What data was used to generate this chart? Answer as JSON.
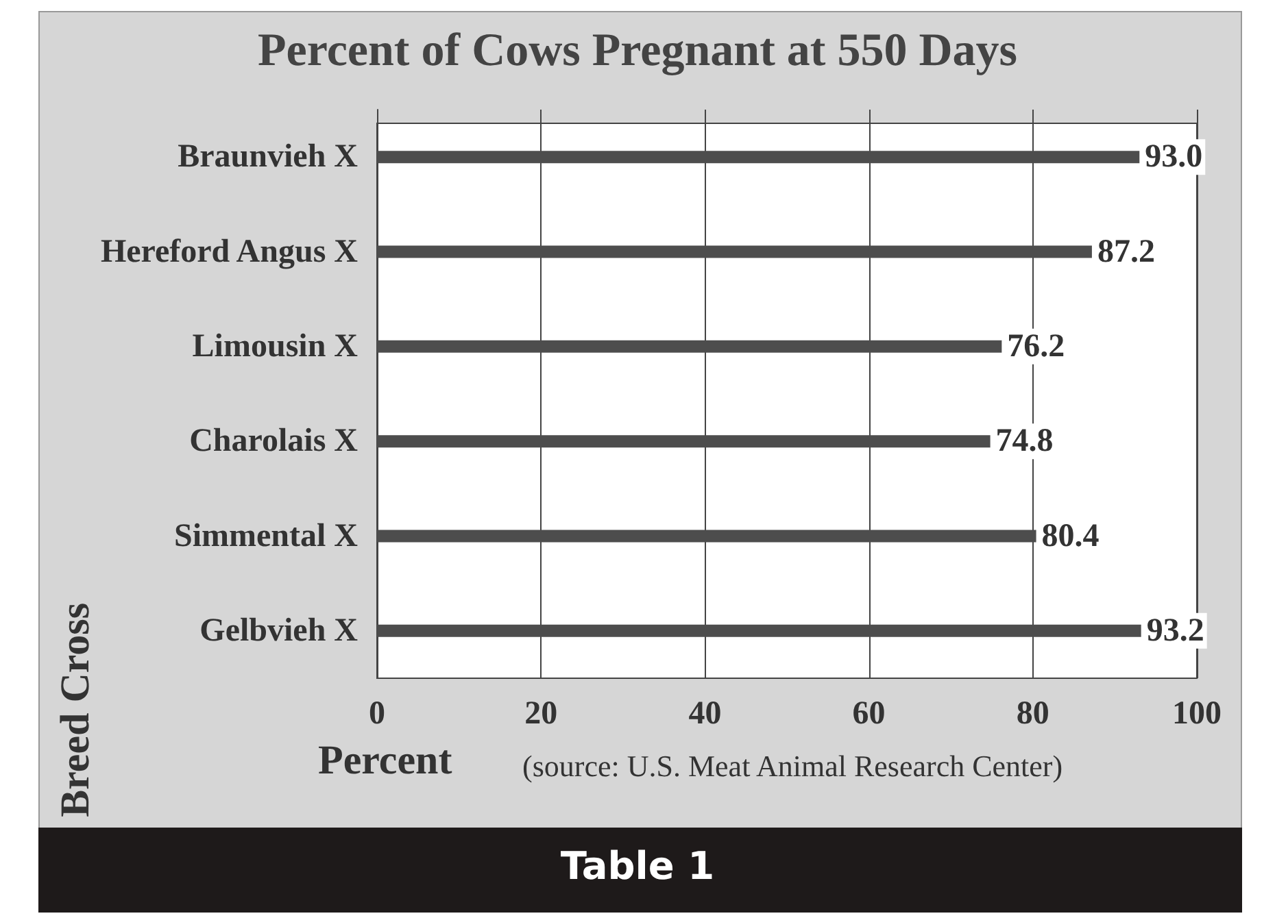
{
  "chart_data": {
    "type": "bar",
    "orientation": "horizontal",
    "title": "Percent of Cows Pregnant at 550 Days",
    "xlabel": "Percent",
    "ylabel": "Breed Cross",
    "categories": [
      "Braunvieh X",
      "Hereford Angus X",
      "Limousin X",
      "Charolais X",
      "Simmental X",
      "Gelbvieh X"
    ],
    "values": [
      93.0,
      87.2,
      76.2,
      74.8,
      80.4,
      93.2
    ],
    "color": "#4d4d4d",
    "value_labels": [
      "93.0",
      "87.2",
      "76.2",
      "74.8",
      "80.4",
      "93.2"
    ],
    "xlim": [
      0,
      100
    ],
    "xticks": [
      0,
      20,
      40,
      60,
      80,
      100
    ],
    "grid": "x",
    "annotations": [
      "(source: U.S. Meat Animal Research Center)",
      "Table 1"
    ]
  }
}
